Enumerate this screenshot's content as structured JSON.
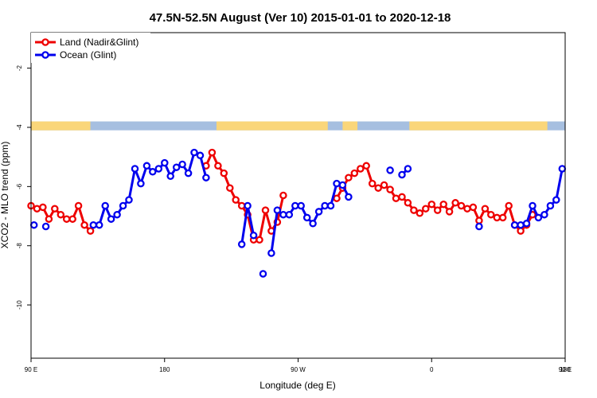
{
  "chart_data": {
    "type": "line",
    "title": "47.5N-52.5N August (Ver 10)   2015-01-01 to 2020-12-18",
    "xlabel": "Longitude (deg E)",
    "ylabel": "XCO2 - MLO trend (ppm)",
    "xlim": [
      90,
      450
    ],
    "ylim": [
      -11.8,
      -0.8
    ],
    "x_ticks": [
      {
        "value": 90,
        "label": "90 E"
      },
      {
        "value": 180,
        "label": "180"
      },
      {
        "value": 270,
        "label": "90 W"
      },
      {
        "value": 360,
        "label": "0"
      },
      {
        "value": 450,
        "label": "90 E"
      },
      {
        "value": 540,
        "label": "180"
      }
    ],
    "x_ticks_note": "x values beyond 180 continue across the dateline; tick labels shown as printed",
    "y_ticks": [
      {
        "value": -2,
        "label": "-2"
      },
      {
        "value": -4,
        "label": "-4"
      },
      {
        "value": -6,
        "label": "-6"
      },
      {
        "value": -8,
        "label": "-8"
      },
      {
        "value": -10,
        "label": "-10"
      }
    ],
    "legend_position": "top-left",
    "land_ocean_strip": {
      "y_range": [
        -3.8,
        -4.1
      ],
      "land_color": "#fad67a",
      "ocean_color": "#a6bfe0",
      "land_segments": [
        [
          90,
          130
        ],
        [
          215,
          290
        ],
        [
          300,
          310
        ],
        [
          345,
          438
        ]
      ]
    },
    "series": [
      {
        "name": "Land (Nadir&Glint)",
        "color": "#ee0000",
        "points": [
          [
            [
              90,
              -6.65
            ],
            [
              95,
              -6.75
            ],
            [
              100,
              -6.7
            ],
            [
              105,
              -7.1
            ],
            [
              110,
              -6.75
            ],
            [
              115,
              -6.95
            ],
            [
              120,
              -7.1
            ],
            [
              125,
              -7.1
            ],
            [
              130,
              -6.65
            ],
            [
              135,
              -7.3
            ],
            [
              140,
              -7.5
            ]
          ],
          [
            [
              237.5,
              -5.3
            ],
            [
              242.5,
              -4.85
            ],
            [
              247.5,
              -5.3
            ],
            [
              252.5,
              -5.55
            ],
            [
              257.5,
              -6.05
            ],
            [
              262.5,
              -6.45
            ],
            [
              267.5,
              -6.65
            ],
            [
              272.5,
              -6.95
            ],
            [
              277.5,
              -7.8
            ],
            [
              282.5,
              -7.8
            ],
            [
              287.5,
              -6.8
            ],
            [
              292.5,
              -7.5
            ],
            [
              297.5,
              -7.2
            ],
            [
              302.5,
              -6.3
            ]
          ],
          [
            [
              347.5,
              -6.4
            ],
            [
              352.5,
              -6.05
            ],
            [
              357.5,
              -5.7
            ],
            [
              362.5,
              -5.55
            ],
            [
              367.5,
              -5.4
            ],
            [
              372.5,
              -5.3
            ],
            [
              377.5,
              -5.9
            ],
            [
              382.5,
              -6.05
            ],
            [
              387.5,
              -5.95
            ],
            [
              392.5,
              -6.1
            ],
            [
              397.5,
              -6.4
            ],
            [
              402.5,
              -6.35
            ],
            [
              407.5,
              -6.55
            ],
            [
              412.5,
              -6.8
            ],
            [
              417.5,
              -6.9
            ],
            [
              422.5,
              -6.75
            ],
            [
              427.5,
              -6.6
            ],
            [
              432.5,
              -6.8
            ],
            [
              437.5,
              -6.6
            ],
            [
              442.5,
              -6.85
            ],
            [
              447.5,
              -6.55
            ],
            [
              452.5,
              -6.65
            ],
            [
              457.5,
              -6.75
            ],
            [
              462.5,
              -6.7
            ],
            [
              467.5,
              -7.15
            ],
            [
              472.5,
              -6.75
            ],
            [
              477.5,
              -6.95
            ],
            [
              482.5,
              -7.05
            ],
            [
              487.5,
              -7.05
            ],
            [
              492.5,
              -6.65
            ],
            [
              497.5,
              -7.3
            ],
            [
              502.5,
              -7.5
            ],
            [
              507.5,
              -7.3
            ],
            [
              512.5,
              -6.95
            ]
          ]
        ]
      },
      {
        "name": "Ocean (Glint)",
        "color": "#0000ee",
        "points": [
          [
            [
              92.5,
              -7.3
            ]
          ],
          [
            [
              102.5,
              -7.35
            ]
          ],
          [
            [
              142.5,
              -7.3
            ],
            [
              147.5,
              -7.3
            ],
            [
              152.5,
              -6.65
            ],
            [
              157.5,
              -7.1
            ],
            [
              162.5,
              -6.95
            ],
            [
              167.5,
              -6.65
            ],
            [
              172.5,
              -6.45
            ],
            [
              177.5,
              -5.4
            ],
            [
              182.5,
              -5.9
            ],
            [
              187.5,
              -5.3
            ],
            [
              192.5,
              -5.5
            ],
            [
              197.5,
              -5.4
            ],
            [
              202.5,
              -5.2
            ],
            [
              207.5,
              -5.65
            ],
            [
              212.5,
              -5.35
            ],
            [
              217.5,
              -5.25
            ],
            [
              222.5,
              -5.55
            ],
            [
              227.5,
              -4.85
            ],
            [
              232.5,
              -4.95
            ],
            [
              237.5,
              -5.7
            ]
          ],
          [
            [
              267.5,
              -7.95
            ],
            [
              272.5,
              -6.65
            ],
            [
              277.5,
              -7.65
            ]
          ],
          [
            [
              285.5,
              -8.95
            ]
          ],
          [
            [
              292.5,
              -8.25
            ],
            [
              297.5,
              -6.8
            ],
            [
              302.5,
              -6.95
            ],
            [
              307.5,
              -6.95
            ],
            [
              312.5,
              -6.65
            ],
            [
              317.5,
              -6.65
            ],
            [
              322.5,
              -7.05
            ],
            [
              327.5,
              -7.25
            ],
            [
              332.5,
              -6.85
            ],
            [
              337.5,
              -6.65
            ],
            [
              342.5,
              -6.65
            ],
            [
              347.5,
              -5.9
            ],
            [
              352.5,
              -5.95
            ],
            [
              357.5,
              -6.35
            ]
          ],
          [
            [
              392.5,
              -5.45
            ]
          ],
          [
            [
              402.5,
              -5.6
            ],
            [
              407.5,
              -5.4
            ]
          ],
          [
            [
              467.5,
              -7.35
            ]
          ],
          [
            [
              497.5,
              -7.3
            ],
            [
              502.5,
              -7.3
            ],
            [
              507.5,
              -7.25
            ],
            [
              512.5,
              -6.65
            ],
            [
              517.5,
              -7.05
            ],
            [
              522.5,
              -6.95
            ],
            [
              527.5,
              -6.65
            ],
            [
              532.5,
              -6.45
            ],
            [
              537.5,
              -5.4
            ]
          ]
        ]
      }
    ]
  }
}
